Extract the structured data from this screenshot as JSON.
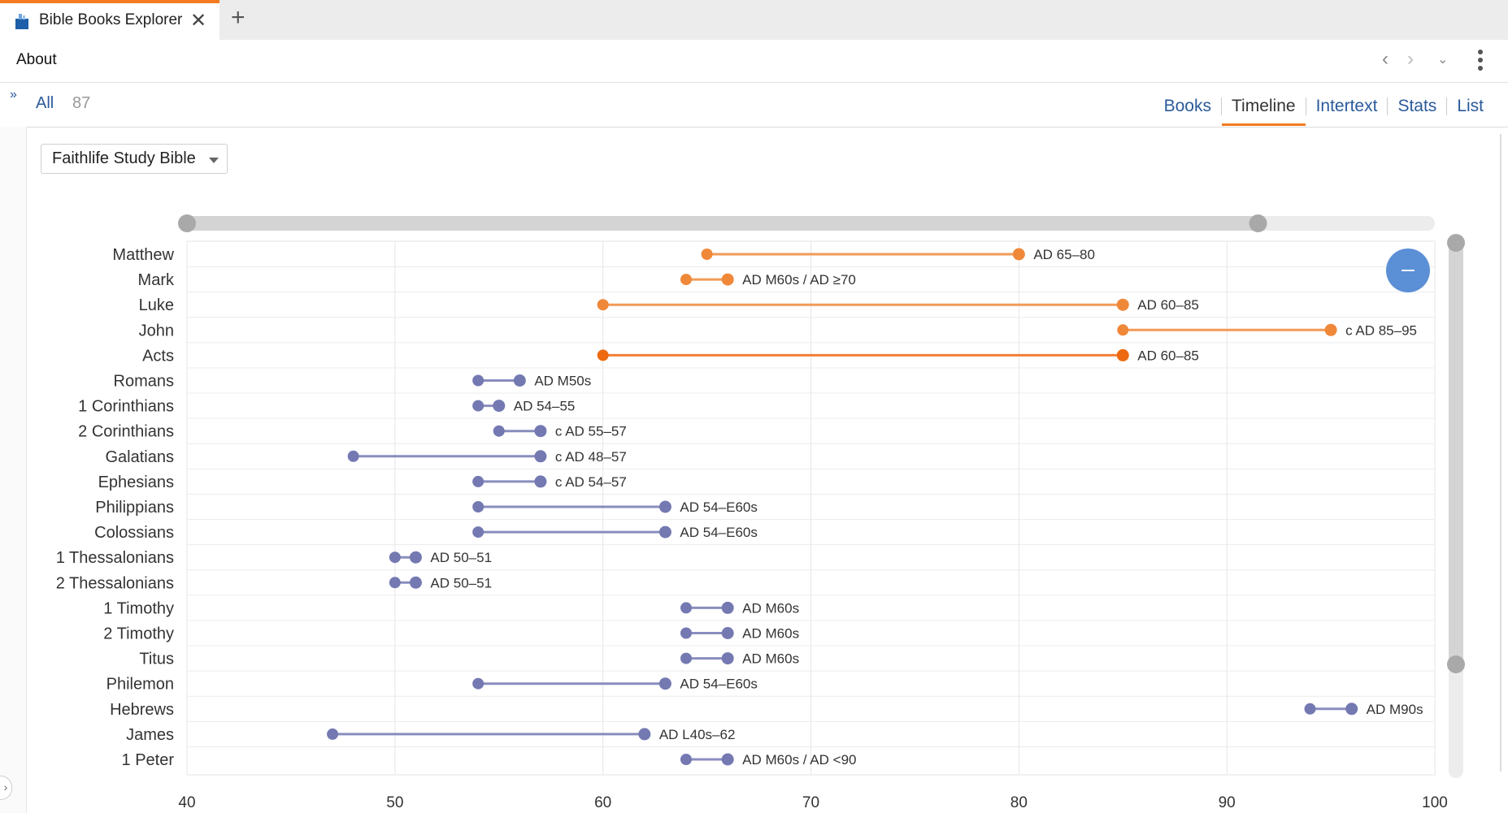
{
  "tab": {
    "title": "Bible Books Explorer",
    "close_icon": "close-icon",
    "new_tab_icon": "plus-icon"
  },
  "panel": {
    "title": "About"
  },
  "filter": {
    "all_label": "All",
    "all_count": "87",
    "expand_icon": "double-chevron-right-icon"
  },
  "views": [
    {
      "label": "Books",
      "active": false
    },
    {
      "label": "Timeline",
      "active": true
    },
    {
      "label": "Intertext",
      "active": false
    },
    {
      "label": "Stats",
      "active": false
    },
    {
      "label": "List",
      "active": false
    }
  ],
  "dropdown": {
    "value": "Faithlife Study Bible"
  },
  "colors": {
    "gospel": "#f0883a",
    "gospel_highlight": "#ee6a10",
    "epistle": "#7479b2",
    "accent": "#f47b20",
    "link": "#2a5a9a"
  },
  "chart_data": {
    "type": "timeline",
    "xlim": [
      40,
      100
    ],
    "xticks": [
      40,
      50,
      60,
      70,
      80,
      90,
      100
    ],
    "range_slider": [
      40,
      91.5
    ],
    "rows": [
      {
        "book": "Matthew",
        "start": 65,
        "end": 80,
        "label": "AD 65–80",
        "group": "gospel"
      },
      {
        "book": "Mark",
        "start": 64,
        "end": 66,
        "label": "AD M60s / AD ≥70",
        "group": "gospel"
      },
      {
        "book": "Luke",
        "start": 60,
        "end": 85,
        "label": "AD 60–85",
        "group": "gospel"
      },
      {
        "book": "John",
        "start": 85,
        "end": 95,
        "label": "c AD 85–95",
        "group": "gospel"
      },
      {
        "book": "Acts",
        "start": 60,
        "end": 85,
        "label": "AD 60–85",
        "group": "gospel_highlight"
      },
      {
        "book": "Romans",
        "start": 54,
        "end": 56,
        "label": "AD M50s",
        "group": "epistle"
      },
      {
        "book": "1 Corinthians",
        "start": 54,
        "end": 55,
        "label": "AD 54–55",
        "group": "epistle"
      },
      {
        "book": "2 Corinthians",
        "start": 55,
        "end": 57,
        "label": "c AD 55–57",
        "group": "epistle"
      },
      {
        "book": "Galatians",
        "start": 48,
        "end": 57,
        "label": "c AD 48–57",
        "group": "epistle"
      },
      {
        "book": "Ephesians",
        "start": 54,
        "end": 57,
        "label": "c AD 54–57",
        "group": "epistle"
      },
      {
        "book": "Philippians",
        "start": 54,
        "end": 63,
        "label": "AD 54–E60s",
        "group": "epistle"
      },
      {
        "book": "Colossians",
        "start": 54,
        "end": 63,
        "label": "AD 54–E60s",
        "group": "epistle"
      },
      {
        "book": "1 Thessalonians",
        "start": 50,
        "end": 51,
        "label": "AD 50–51",
        "group": "epistle"
      },
      {
        "book": "2 Thessalonians",
        "start": 50,
        "end": 51,
        "label": "AD 50–51",
        "group": "epistle"
      },
      {
        "book": "1 Timothy",
        "start": 64,
        "end": 66,
        "label": "AD M60s",
        "group": "epistle"
      },
      {
        "book": "2 Timothy",
        "start": 64,
        "end": 66,
        "label": "AD M60s",
        "group": "epistle"
      },
      {
        "book": "Titus",
        "start": 64,
        "end": 66,
        "label": "AD M60s",
        "group": "epistle"
      },
      {
        "book": "Philemon",
        "start": 54,
        "end": 63,
        "label": "AD 54–E60s",
        "group": "epistle"
      },
      {
        "book": "Hebrews",
        "start": 94,
        "end": 96,
        "label": "AD M90s",
        "group": "epistle"
      },
      {
        "book": "James",
        "start": 47,
        "end": 62,
        "label": "AD L40s–62",
        "group": "epistle"
      },
      {
        "book": "1 Peter",
        "start": 64,
        "end": 66,
        "label": "AD M60s / AD <90",
        "group": "epistle"
      }
    ]
  }
}
